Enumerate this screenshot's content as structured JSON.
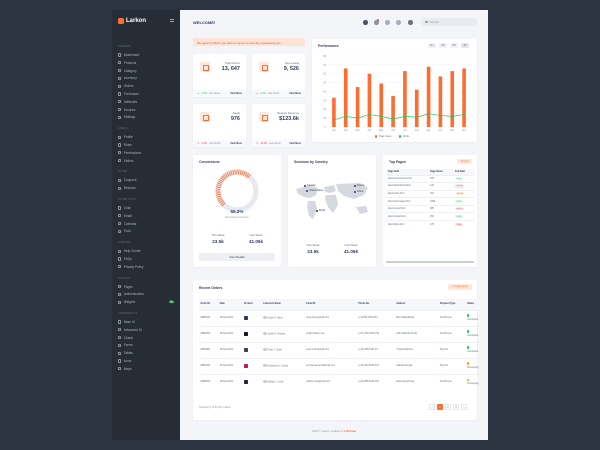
{
  "sidebar": {
    "brand": "Larkon",
    "sections": [
      {
        "title": "GENERAL",
        "items": [
          {
            "label": "Dashboard",
            "icon": "dashboard-icon"
          },
          {
            "label": "Products",
            "icon": "products-icon",
            "chevron": true
          },
          {
            "label": "Category",
            "icon": "category-icon",
            "chevron": true
          },
          {
            "label": "Inventory",
            "icon": "inventory-icon",
            "chevron": true
          },
          {
            "label": "Orders",
            "icon": "orders-icon",
            "chevron": true
          },
          {
            "label": "Purchases",
            "icon": "purchases-icon",
            "chevron": true
          },
          {
            "label": "Attributes",
            "icon": "attributes-icon",
            "chevron": true
          },
          {
            "label": "Invoices",
            "icon": "invoices-icon",
            "chevron": true
          },
          {
            "label": "Settings",
            "icon": "settings-icon"
          }
        ]
      },
      {
        "title": "USERS",
        "items": [
          {
            "label": "Profile",
            "icon": "profile-icon"
          },
          {
            "label": "Roles",
            "icon": "roles-icon",
            "chevron": true
          },
          {
            "label": "Permissions",
            "icon": "permissions-icon"
          },
          {
            "label": "Sellers",
            "icon": "sellers-icon",
            "chevron": true
          }
        ]
      },
      {
        "title": "OTHER",
        "items": [
          {
            "label": "Coupons",
            "icon": "coupons-icon",
            "chevron": true
          },
          {
            "label": "Reviews",
            "icon": "reviews-icon"
          }
        ]
      },
      {
        "title": "OTHER APPS",
        "items": [
          {
            "label": "Chat",
            "icon": "chat-icon"
          },
          {
            "label": "Email",
            "icon": "email-icon"
          },
          {
            "label": "Calendar",
            "icon": "calendar-icon"
          },
          {
            "label": "Todo",
            "icon": "todo-icon"
          }
        ]
      },
      {
        "title": "SUPPORT",
        "items": [
          {
            "label": "Help Center",
            "icon": "help-icon"
          },
          {
            "label": "FAQs",
            "icon": "faq-icon"
          },
          {
            "label": "Privacy Policy",
            "icon": "privacy-icon"
          }
        ]
      },
      {
        "title": "CUSTOM",
        "items": [
          {
            "label": "Pages",
            "icon": "pages-icon",
            "chevron": true
          },
          {
            "label": "Authentication",
            "icon": "auth-icon",
            "chevron": true
          },
          {
            "label": "Widgets",
            "icon": "widgets-icon",
            "tag": "9+"
          }
        ]
      },
      {
        "title": "COMPONENTS",
        "items": [
          {
            "label": "Base UI",
            "icon": "base-ui-icon",
            "chevron": true
          },
          {
            "label": "Advanced UI",
            "icon": "advanced-ui-icon",
            "chevron": true
          },
          {
            "label": "Charts",
            "icon": "charts-icon",
            "chevron": true
          },
          {
            "label": "Forms",
            "icon": "forms-icon",
            "chevron": true
          },
          {
            "label": "Tables",
            "icon": "tables-icon",
            "chevron": true
          },
          {
            "label": "Icons",
            "icon": "icons-icon",
            "chevron": true
          },
          {
            "label": "Maps",
            "icon": "maps-icon",
            "chevron": true
          }
        ]
      }
    ]
  },
  "header": {
    "title": "WELCOME!",
    "search_placeholder": "Search..."
  },
  "alert": "We regret to inform you that our server is currently experiencing tec...",
  "stats": [
    {
      "label": "Total Orders",
      "value": "13, 647",
      "change": "2.3%",
      "dir": "up",
      "period": "Last Week",
      "link": "View More",
      "icon": "cart-icon"
    },
    {
      "label": "New Leads",
      "value": "9, 526",
      "change": "8.1%",
      "dir": "up",
      "period": "Last Month",
      "link": "View More",
      "icon": "leads-icon"
    },
    {
      "label": "Deals",
      "value": "976",
      "change": "0.3%",
      "dir": "down",
      "period": "Last Month",
      "link": "View More",
      "icon": "deals-icon"
    },
    {
      "label": "Booked Revenue",
      "value": "$123.6k",
      "change": "10.6%",
      "dir": "down",
      "period": "Last Month",
      "link": "View More",
      "icon": "revenue-icon"
    }
  ],
  "performance": {
    "title": "Performance",
    "periods": [
      "ALL",
      "1M",
      "6M",
      "1Y"
    ],
    "active_period": "1Y"
  },
  "chart_data": {
    "type": "bar",
    "categories": [
      "Jan",
      "Feb",
      "Mar",
      "Apr",
      "May",
      "Jun",
      "Jul",
      "Aug",
      "Sep",
      "Oct",
      "Nov",
      "Dec"
    ],
    "ylim": [
      0,
      80
    ],
    "yticks": [
      0,
      10,
      20,
      30,
      40,
      50,
      60,
      70,
      80
    ],
    "series": [
      {
        "name": "Page Views",
        "type": "bar",
        "color": "#ff6c2f",
        "values": [
          33,
          66,
          45,
          60,
          49,
          35,
          63,
          42,
          68,
          57,
          63,
          66
        ]
      },
      {
        "name": "Clicks",
        "type": "line",
        "color": "#22c55e",
        "values": [
          8,
          12,
          10,
          14,
          12,
          9,
          12,
          11,
          15,
          13,
          12,
          14
        ]
      }
    ]
  },
  "conversions": {
    "title": "Conversions",
    "percent": 65.2,
    "percent_label": "65.2%",
    "sub": "Returning Customer",
    "this_week_label": "This Week",
    "this_week": "23.5k",
    "last_week_label": "Last Week",
    "last_week": "41.05k",
    "button": "View Details"
  },
  "sessions": {
    "title": "Sessions by Country",
    "pins": [
      "Canada",
      "United States",
      "Brazil",
      "Russia",
      "China"
    ],
    "this_week_label": "This Week",
    "this_week": "23.5k",
    "last_week_label": "Last Week",
    "last_week": "41.05k"
  },
  "top_pages": {
    "title": "Top Pages",
    "button": "View All",
    "columns": [
      "Page Path",
      "Page Views",
      "Exit Rate"
    ],
    "rows": [
      {
        "path": "larkon/ecommerce.html",
        "views": "465",
        "rate": "4.4%",
        "tone": "green"
      },
      {
        "path": "larkon/dashboard.html",
        "views": "426",
        "rate": "20.4%",
        "tone": "red"
      },
      {
        "path": "larkon/chat.html",
        "views": "254",
        "rate": "12.25%",
        "tone": "amber"
      },
      {
        "path": "larkon/auth-login.html",
        "views": "3369",
        "rate": "5.2%",
        "tone": "green"
      },
      {
        "path": "larkon/email.html",
        "views": "985",
        "rate": "64.2%",
        "tone": "red"
      },
      {
        "path": "larkon/social.html",
        "views": "653",
        "rate": "2.4%",
        "tone": "green"
      },
      {
        "path": "larkon/blog.html",
        "views": "478",
        "rate": "1.4%",
        "tone": "red"
      }
    ]
  },
  "recent_orders": {
    "title": "Recent Orders",
    "button": "+ Create Order",
    "columns": [
      "Order ID.",
      "Date",
      "Product",
      "Customer Name",
      "Email ID",
      "Phone No.",
      "Address",
      "Payment Type",
      "Status"
    ],
    "rows": [
      {
        "id": "#RB5625",
        "date": "29 April 2024",
        "customer": "Anna M. Hines",
        "email": "anna.hines@mail.com",
        "phone": "(+1)-555-1564-261",
        "address": "Burr Ridge/Illinois",
        "payment": "Credit Card",
        "status": "Completed",
        "tone": "green"
      },
      {
        "id": "#RB9652",
        "date": "25 April 2024",
        "customer": "Judith H. Fritsche",
        "email": "judith.fritsche.com",
        "phone": "(+57)-305-5579-759",
        "address": "SULLIVAN/Kentucky",
        "payment": "Credit Card",
        "status": "Completed",
        "tone": "green"
      },
      {
        "id": "#RB5984",
        "date": "25 April 2024",
        "customer": "Peter T. Smith",
        "email": "peter.smith@mail.com",
        "phone": "(+33)-655-5187-93",
        "address": "Yreka/California",
        "payment": "Pay Pal",
        "status": "Completed",
        "tone": "green"
      },
      {
        "id": "#RB3625",
        "date": "21 April 2024",
        "customer": "Emmanuel J. Delcid",
        "email": "emmanuel.delcid@mail.com",
        "phone": "(+30)-693-5553-637",
        "address": "Atlanta/Georgia",
        "payment": "Pay Pal",
        "status": "Processing",
        "tone": "amber"
      },
      {
        "id": "#RB8652",
        "date": "18 April 2024",
        "customer": "William J. Cook",
        "email": "william.cook@mail.com",
        "phone": "(+91)-855-5446-150",
        "address": "Rosenberg/Texas",
        "payment": "Credit Card",
        "status": "Processing",
        "tone": "amber"
      }
    ],
    "showing": "Showing 5 of 90,521 orders",
    "pages": [
      "1",
      "2",
      "3"
    ],
    "active_page": "1"
  },
  "footer": {
    "text": "2024 © Larkon. Crafted by",
    "brand": "Techzaa"
  }
}
